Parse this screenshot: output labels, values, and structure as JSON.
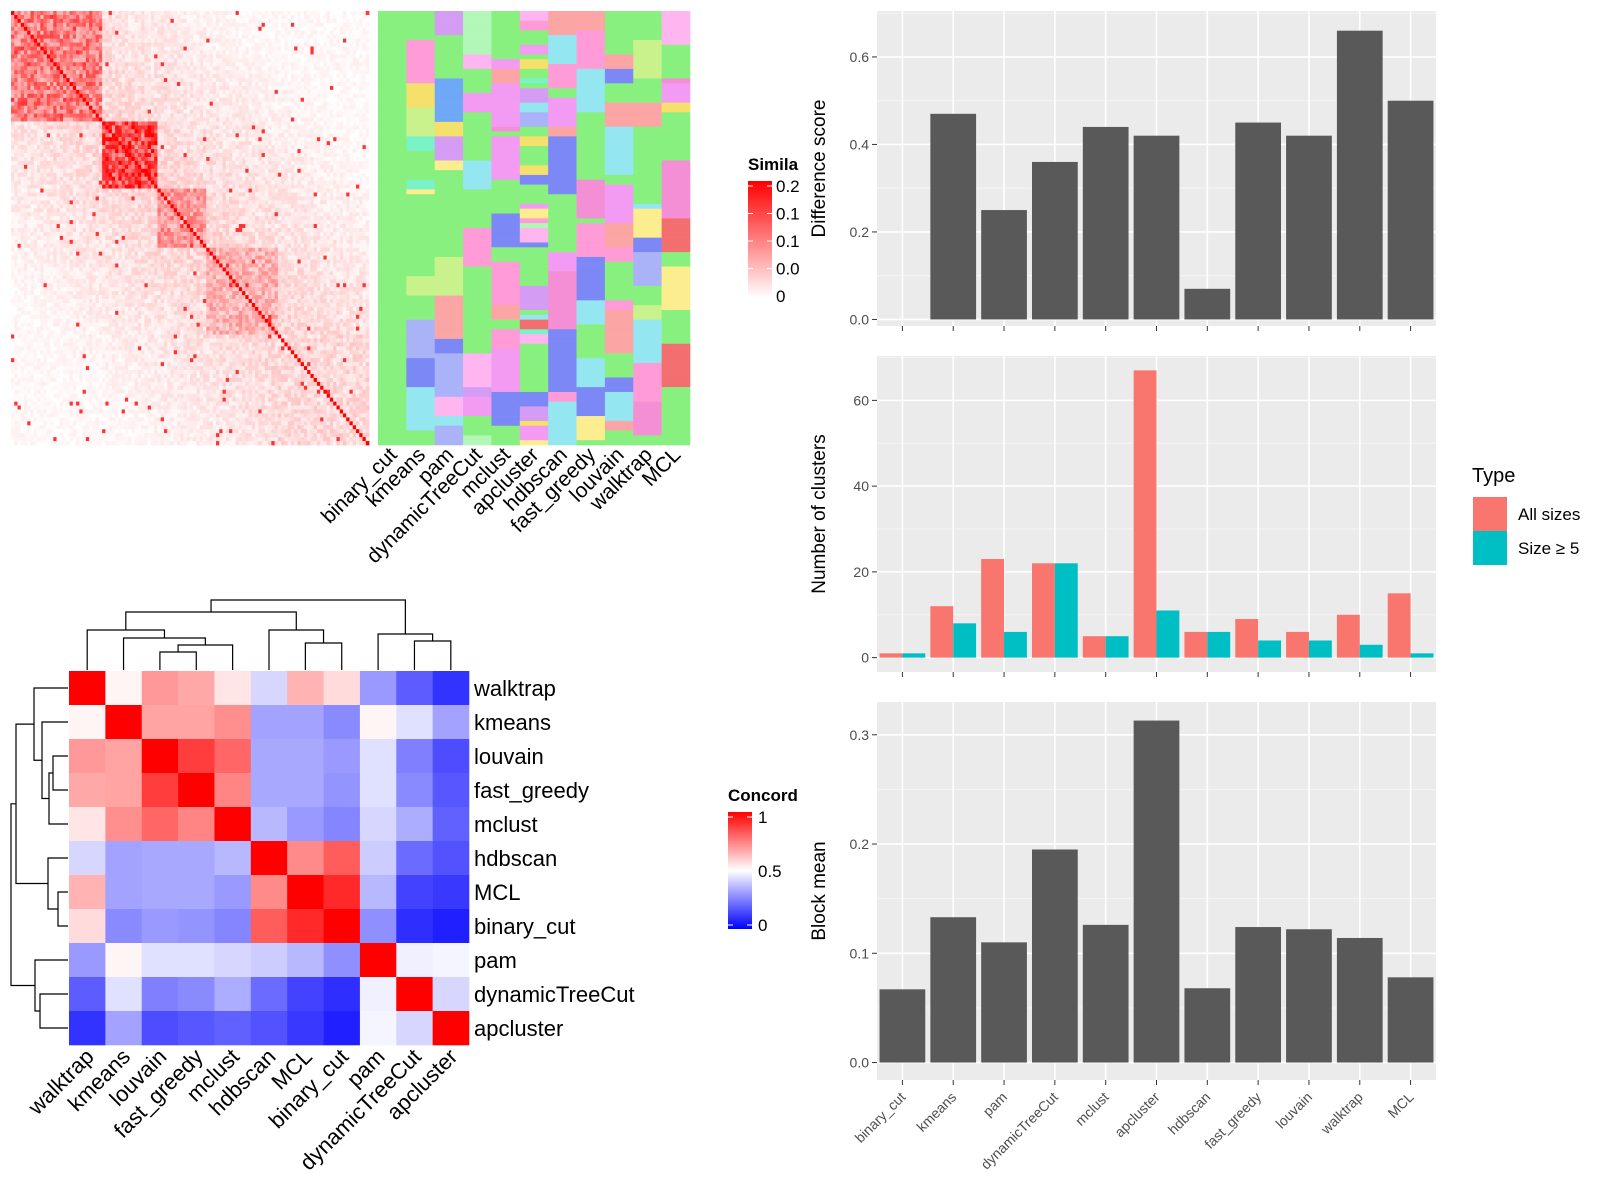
{
  "methods_top": [
    "binary_cut",
    "kmeans",
    "pam",
    "dynamicTreeCut",
    "mclust",
    "apcluster",
    "hdbscan",
    "fast_greedy",
    "louvain",
    "walktrap",
    "MCL"
  ],
  "similarity_heatmap": {
    "legend_title": "Simila",
    "legend_ticks": [
      "0.2",
      "0.1",
      "0.1",
      "0.0",
      "0"
    ],
    "low_color": "#ffffff",
    "high_color": "#ff0000"
  },
  "cluster_colors": [
    "#88f07f",
    "#f48fd5",
    "#fca5a5",
    "#ff9bd7",
    "#f39bf3",
    "#7b88f5",
    "#94e6f0",
    "#c9f28c",
    "#fcee8f",
    "#aab3f8",
    "#79f2c7",
    "#ffb5ef",
    "#f4e06a",
    "#d59cf4",
    "#6fa8f7",
    "#f36f6f",
    "#b2f7b8"
  ],
  "concordance_heatmap": {
    "legend_title": "Concord",
    "legend_ticks": [
      "1",
      "0.5",
      "0"
    ],
    "row_labels": [
      "walktrap",
      "kmeans",
      "louvain",
      "fast_greedy",
      "mclust",
      "hdbscan",
      "MCL",
      "binary_cut",
      "pam",
      "dynamicTreeCut",
      "apcluster"
    ],
    "col_labels": [
      "walktrap",
      "kmeans",
      "louvain",
      "fast_greedy",
      "mclust",
      "hdbscan",
      "MCL",
      "binary_cut",
      "pam",
      "dynamicTreeCut",
      "apcluster"
    ],
    "values": [
      [
        1.0,
        0.52,
        0.7,
        0.67,
        0.55,
        0.42,
        0.65,
        0.57,
        0.3,
        0.18,
        0.1
      ],
      [
        0.52,
        1.0,
        0.68,
        0.68,
        0.72,
        0.32,
        0.32,
        0.27,
        0.52,
        0.44,
        0.32
      ],
      [
        0.7,
        0.68,
        1.0,
        0.88,
        0.8,
        0.33,
        0.33,
        0.3,
        0.44,
        0.25,
        0.15
      ],
      [
        0.67,
        0.68,
        0.88,
        1.0,
        0.74,
        0.33,
        0.33,
        0.29,
        0.44,
        0.27,
        0.17
      ],
      [
        0.55,
        0.72,
        0.8,
        0.74,
        1.0,
        0.36,
        0.3,
        0.26,
        0.42,
        0.34,
        0.19
      ],
      [
        0.42,
        0.32,
        0.33,
        0.33,
        0.36,
        1.0,
        0.73,
        0.82,
        0.4,
        0.21,
        0.16
      ],
      [
        0.65,
        0.32,
        0.33,
        0.33,
        0.3,
        0.73,
        1.0,
        0.92,
        0.36,
        0.13,
        0.11
      ],
      [
        0.57,
        0.27,
        0.3,
        0.29,
        0.26,
        0.82,
        0.92,
        1.0,
        0.28,
        0.09,
        0.06
      ],
      [
        0.3,
        0.52,
        0.44,
        0.44,
        0.42,
        0.4,
        0.36,
        0.28,
        1.0,
        0.47,
        0.48
      ],
      [
        0.18,
        0.44,
        0.25,
        0.27,
        0.34,
        0.21,
        0.13,
        0.09,
        0.47,
        1.0,
        0.42
      ],
      [
        0.1,
        0.32,
        0.15,
        0.17,
        0.19,
        0.16,
        0.11,
        0.06,
        0.48,
        0.42,
        1.0
      ]
    ]
  },
  "chart_data": [
    {
      "type": "bar",
      "categories": [
        "binary_cut",
        "kmeans",
        "pam",
        "dynamicTreeCut",
        "mclust",
        "apcluster",
        "hdbscan",
        "fast_greedy",
        "louvain",
        "walktrap",
        "MCL"
      ],
      "values": [
        0.0,
        0.47,
        0.25,
        0.36,
        0.44,
        0.42,
        0.07,
        0.45,
        0.42,
        0.66,
        0.5
      ],
      "ylabel": "Difference score",
      "yticks": [
        "0.0",
        "0.2",
        "0.4",
        "0.6"
      ],
      "ylim": [
        -0.015,
        0.705
      ],
      "bar_color": "#595959"
    },
    {
      "type": "bar",
      "categories": [
        "binary_cut",
        "kmeans",
        "pam",
        "dynamicTreeCut",
        "mclust",
        "apcluster",
        "hdbscan",
        "fast_greedy",
        "louvain",
        "walktrap",
        "MCL"
      ],
      "series": [
        {
          "name": "All sizes",
          "values": [
            1,
            12,
            23,
            22,
            5,
            67,
            6,
            9,
            6,
            10,
            15
          ],
          "color": "#f8766d"
        },
        {
          "name": "Size ≥ 5",
          "values": [
            1,
            8,
            6,
            22,
            5,
            11,
            6,
            4,
            4,
            3,
            1
          ],
          "color": "#00bfc4"
        }
      ],
      "ylabel": "Number of clusters",
      "yticks": [
        "0",
        "20",
        "40",
        "60"
      ],
      "ylim": [
        -3.35,
        70.35
      ],
      "legend_title": "Type",
      "legend_position": "right"
    },
    {
      "type": "bar",
      "categories": [
        "binary_cut",
        "kmeans",
        "pam",
        "dynamicTreeCut",
        "mclust",
        "apcluster",
        "hdbscan",
        "fast_greedy",
        "louvain",
        "walktrap",
        "MCL"
      ],
      "values": [
        0.067,
        0.133,
        0.11,
        0.195,
        0.126,
        0.313,
        0.068,
        0.124,
        0.122,
        0.114,
        0.078
      ],
      "ylabel": "Block mean",
      "yticks": [
        "0.0",
        "0.1",
        "0.2",
        "0.3"
      ],
      "ylim": [
        -0.016,
        0.33
      ],
      "bar_color": "#595959"
    }
  ]
}
